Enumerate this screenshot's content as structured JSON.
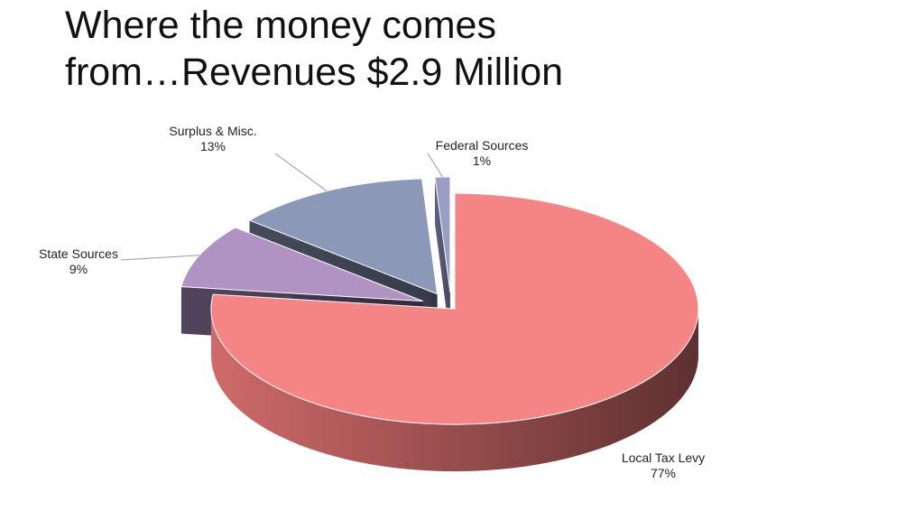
{
  "title": {
    "line1": "Where the money comes",
    "line2": "from…Revenues $2.9 Million"
  },
  "chart_data": {
    "type": "pie",
    "style": "3d-exploded",
    "title": "Where the money comes from…Revenues $2.9 Million",
    "slices": [
      {
        "label": "Local Tax Levy",
        "value": 77,
        "pct_label": "77%",
        "color": "#f58585"
      },
      {
        "label": "State Sources",
        "value": 9,
        "pct_label": "9%",
        "color": "#b093c2"
      },
      {
        "label": "Surplus & Misc.",
        "value": 13,
        "pct_label": "13%",
        "color": "#8c98b8"
      },
      {
        "label": "Federal Sources",
        "value": 1,
        "pct_label": "1%",
        "color": "#9b9ec4"
      }
    ]
  }
}
